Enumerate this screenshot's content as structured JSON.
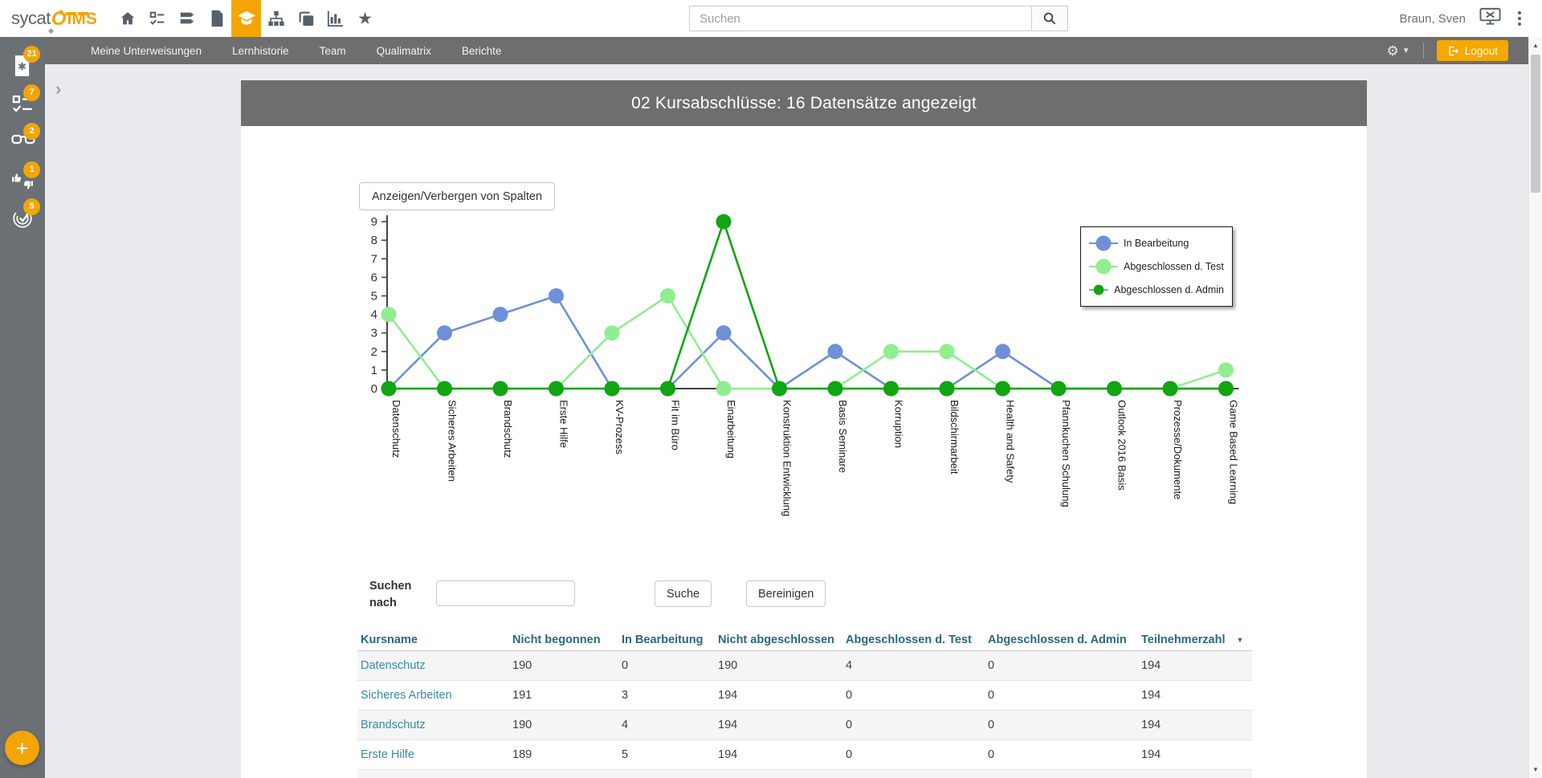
{
  "topbar": {
    "logo": {
      "part1": "sycat",
      "o": "O",
      "part2": "IMS"
    },
    "search": {
      "placeholder": "Suchen"
    },
    "user": "Braun, Sven"
  },
  "navbar": {
    "items": [
      "Meine Unterweisungen",
      "Lernhistorie",
      "Team",
      "Qualimatrix",
      "Berichte"
    ],
    "logout_label": "Logout"
  },
  "sidebar": {
    "badges": {
      "documents": "21",
      "tasks": "7",
      "reading": "2",
      "feedback": "1",
      "completed": "5"
    },
    "fab_label": "+"
  },
  "page": {
    "title": "02 Kursabschlüsse: 16 Datensätze angezeigt"
  },
  "toolbar": {
    "columns_button": "Anzeigen/Verbergen von Spalten"
  },
  "chart_data": {
    "type": "line",
    "title": "",
    "xlabel": "",
    "ylabel": "",
    "ylim": [
      0,
      9
    ],
    "yticks": [
      0,
      1,
      2,
      3,
      4,
      5,
      6,
      7,
      8,
      9
    ],
    "grid": false,
    "legend_position": "top-right",
    "categories": [
      "Datenschutz",
      "Sicheres Arbeiten",
      "Brandschutz",
      "Erste Hilfe",
      "KV-Prozess",
      "Fit im Büro",
      "Einarbeitung",
      "Konstruktion Entwicklung",
      "Basis Seminare",
      "Korruption",
      "Bildschirmarbeit",
      "Health and Safety",
      "Pfannkuchen Schulung",
      "Outlook 2016 Basis",
      "Prozesse/Dokumente",
      "Game Based Learning"
    ],
    "series": [
      {
        "name": "In Bearbeitung",
        "color": "#6e90d8",
        "values": [
          0,
          3,
          4,
          5,
          0,
          0,
          3,
          0,
          2,
          0,
          0,
          2,
          0,
          0,
          0,
          0
        ]
      },
      {
        "name": "Abgeschlossen d. Test",
        "color": "#90ee90",
        "values": [
          4,
          0,
          0,
          0,
          3,
          5,
          0,
          0,
          0,
          2,
          2,
          0,
          0,
          0,
          0,
          1
        ]
      },
      {
        "name": "Abgeschlossen d. Admin",
        "color": "#11a511",
        "values": [
          0,
          0,
          0,
          0,
          0,
          0,
          9,
          0,
          0,
          0,
          0,
          0,
          0,
          0,
          0,
          0
        ]
      }
    ]
  },
  "search_section": {
    "label": "Suchen nach",
    "input_value": "",
    "search_button": "Suche",
    "clear_button": "Bereinigen"
  },
  "table": {
    "columns": [
      "Kursname",
      "Nicht begonnen",
      "In Bearbeitung",
      "Nicht abgeschlossen",
      "Abgeschlossen d. Test",
      "Abgeschlossen d. Admin",
      "Teilnehmerzahl"
    ],
    "rows": [
      {
        "name": "Datenschutz",
        "values": [
          190,
          0,
          190,
          4,
          0,
          194
        ]
      },
      {
        "name": "Sicheres Arbeiten",
        "values": [
          191,
          3,
          194,
          0,
          0,
          194
        ]
      },
      {
        "name": "Brandschutz",
        "values": [
          190,
          4,
          194,
          0,
          0,
          194
        ]
      },
      {
        "name": "Erste Hilfe",
        "values": [
          189,
          5,
          194,
          0,
          0,
          194
        ]
      }
    ]
  },
  "colors": {
    "accent_orange": "#f3a506",
    "nav_gray": "#6e6e6e",
    "sidebar_gray": "#6b7074",
    "header_teal": "#2b697a",
    "link_teal": "#3a8ba3"
  }
}
